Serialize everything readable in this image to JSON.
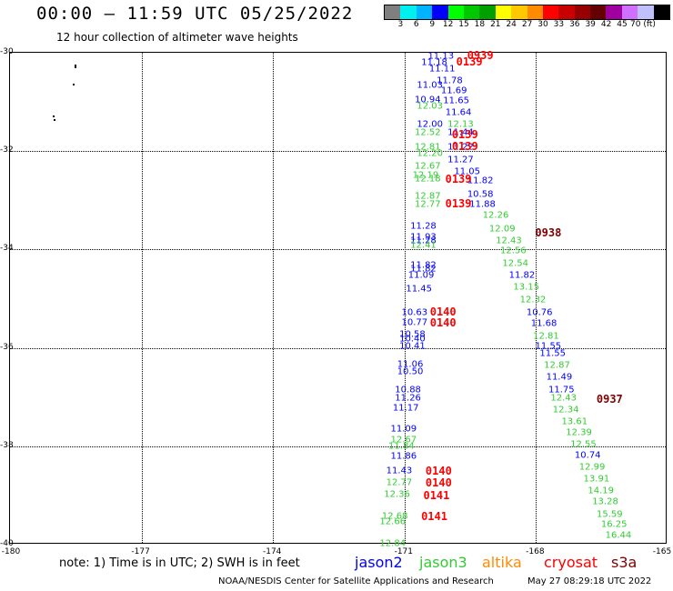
{
  "header": {
    "title": "00:00 — 11:59 UTC 05/25/2022",
    "subtitle": "12 hour collection of altimeter wave heights"
  },
  "colorbar": {
    "colors": [
      "#7f7f7f",
      "#00f0f0",
      "#00b4ff",
      "#0000ff",
      "#00ff00",
      "#00c800",
      "#00a000",
      "#ffff00",
      "#ffc800",
      "#ff8c00",
      "#ff0000",
      "#c80000",
      "#960000",
      "#640000",
      "#a000a0",
      "#d070ff",
      "#c0c0ff",
      "#000000"
    ],
    "labels": [
      "3",
      "6",
      "9",
      "12",
      "15",
      "18",
      "21",
      "24",
      "27",
      "30",
      "33",
      "36",
      "39",
      "42",
      "45",
      "70 (ft)"
    ]
  },
  "axes": {
    "lat_labels": [
      "-30",
      "-32",
      "-34",
      "-36",
      "-38",
      "-40"
    ],
    "lon_labels": [
      "-180",
      "-177",
      "-174",
      "-171",
      "-168",
      "-165"
    ]
  },
  "colors": {
    "jason2": "#0000ff",
    "jason3": "#33cc33",
    "altika": "#ff8c00",
    "cryosat": "#ff0000",
    "s3a": "#800000"
  },
  "observations": [
    {
      "v": "11.13",
      "lon": -170.15,
      "lat": -30.1,
      "s": "jason2"
    },
    {
      "v": "11.18",
      "lon": -170.3,
      "lat": -30.22,
      "s": "jason2"
    },
    {
      "v": "11.11",
      "lon": -170.12,
      "lat": -30.35,
      "s": "jason2"
    },
    {
      "v": "11.78",
      "lon": -169.95,
      "lat": -30.6,
      "s": "jason2"
    },
    {
      "v": "11.03",
      "lon": -170.4,
      "lat": -30.68,
      "s": "jason2"
    },
    {
      "v": "11.69",
      "lon": -169.85,
      "lat": -30.8,
      "s": "jason2"
    },
    {
      "v": "10.94",
      "lon": -170.45,
      "lat": -30.98,
      "s": "jason2"
    },
    {
      "v": "11.65",
      "lon": -169.8,
      "lat": -31.0,
      "s": "jason2"
    },
    {
      "v": "12.03",
      "lon": -170.4,
      "lat": -31.1,
      "s": "jason3"
    },
    {
      "v": "11.64",
      "lon": -169.75,
      "lat": -31.24,
      "s": "jason2"
    },
    {
      "v": "12.00",
      "lon": -170.4,
      "lat": -31.47,
      "s": "jason2"
    },
    {
      "v": "12.13",
      "lon": -169.7,
      "lat": -31.47,
      "s": "jason3"
    },
    {
      "v": "12.52",
      "lon": -170.45,
      "lat": -31.65,
      "s": "jason3"
    },
    {
      "v": "11.44",
      "lon": -169.7,
      "lat": -31.65,
      "s": "jason2"
    },
    {
      "v": "12.81",
      "lon": -170.45,
      "lat": -31.95,
      "s": "jason3"
    },
    {
      "v": "11.22",
      "lon": -169.7,
      "lat": -31.95,
      "s": "jason2"
    },
    {
      "v": "12.20",
      "lon": -170.4,
      "lat": -32.07,
      "s": "jason3"
    },
    {
      "v": "11.27",
      "lon": -169.7,
      "lat": -32.2,
      "s": "jason2"
    },
    {
      "v": "12.67",
      "lon": -170.45,
      "lat": -32.33,
      "s": "jason3"
    },
    {
      "v": "11.05",
      "lon": -169.55,
      "lat": -32.44,
      "s": "jason2"
    },
    {
      "v": "12.19",
      "lon": -170.5,
      "lat": -32.52,
      "s": "jason3"
    },
    {
      "v": "12.18",
      "lon": -170.45,
      "lat": -32.58,
      "s": "jason3"
    },
    {
      "v": "11.82",
      "lon": -169.25,
      "lat": -32.62,
      "s": "jason2"
    },
    {
      "v": "12.87",
      "lon": -170.45,
      "lat": -32.93,
      "s": "jason3"
    },
    {
      "v": "10.58",
      "lon": -169.25,
      "lat": -32.9,
      "s": "jason2"
    },
    {
      "v": "12.77",
      "lon": -170.45,
      "lat": -33.1,
      "s": "jason3"
    },
    {
      "v": "11.88",
      "lon": -169.2,
      "lat": -33.1,
      "s": "jason2"
    },
    {
      "v": "12.26",
      "lon": -168.9,
      "lat": -33.33,
      "s": "jason3"
    },
    {
      "v": "11.28",
      "lon": -170.55,
      "lat": -33.55,
      "s": "jason2"
    },
    {
      "v": "12.09",
      "lon": -168.75,
      "lat": -33.6,
      "s": "jason3"
    },
    {
      "v": "11.93",
      "lon": -170.55,
      "lat": -33.78,
      "s": "jason2"
    },
    {
      "v": "11.28",
      "lon": -170.55,
      "lat": -33.85,
      "s": "jason2"
    },
    {
      "v": "12.43",
      "lon": -168.6,
      "lat": -33.85,
      "s": "jason3"
    },
    {
      "v": "12.41",
      "lon": -170.55,
      "lat": -33.93,
      "s": "jason3"
    },
    {
      "v": "12.56",
      "lon": -168.5,
      "lat": -34.05,
      "s": "jason3"
    },
    {
      "v": "12.54",
      "lon": -168.45,
      "lat": -34.3,
      "s": "jason3"
    },
    {
      "v": "11.82",
      "lon": -170.55,
      "lat": -34.35,
      "s": "jason2"
    },
    {
      "v": "11.82",
      "lon": -170.55,
      "lat": -34.42,
      "s": "jason2"
    },
    {
      "v": "11.09",
      "lon": -170.6,
      "lat": -34.55,
      "s": "jason2"
    },
    {
      "v": "11.82",
      "lon": -168.3,
      "lat": -34.55,
      "s": "jason2"
    },
    {
      "v": "11.45",
      "lon": -170.65,
      "lat": -34.82,
      "s": "jason2"
    },
    {
      "v": "13.15",
      "lon": -168.2,
      "lat": -34.78,
      "s": "jason3"
    },
    {
      "v": "12.32",
      "lon": -168.05,
      "lat": -35.05,
      "s": "jason3"
    },
    {
      "v": "10.63",
      "lon": -170.75,
      "lat": -35.3,
      "s": "jason2"
    },
    {
      "v": "10.76",
      "lon": -167.9,
      "lat": -35.3,
      "s": "jason2"
    },
    {
      "v": "10.77",
      "lon": -170.75,
      "lat": -35.5,
      "s": "jason2"
    },
    {
      "v": "11.68",
      "lon": -167.8,
      "lat": -35.52,
      "s": "jason2"
    },
    {
      "v": "10.58",
      "lon": -170.8,
      "lat": -35.75,
      "s": "jason2"
    },
    {
      "v": "12.81",
      "lon": -167.75,
      "lat": -35.78,
      "s": "jason3"
    },
    {
      "v": "10.40",
      "lon": -170.8,
      "lat": -35.85,
      "s": "jason2"
    },
    {
      "v": "10.41",
      "lon": -170.8,
      "lat": -35.98,
      "s": "jason2"
    },
    {
      "v": "11.55",
      "lon": -167.7,
      "lat": -35.98,
      "s": "jason2"
    },
    {
      "v": "11.55",
      "lon": -167.6,
      "lat": -36.13,
      "s": "jason2"
    },
    {
      "v": "11.06",
      "lon": -170.85,
      "lat": -36.35,
      "s": "jason2"
    },
    {
      "v": "12.87",
      "lon": -167.5,
      "lat": -36.38,
      "s": "jason3"
    },
    {
      "v": "10.50",
      "lon": -170.85,
      "lat": -36.5,
      "s": "jason2"
    },
    {
      "v": "11.49",
      "lon": -167.45,
      "lat": -36.62,
      "s": "jason2"
    },
    {
      "v": "10.88",
      "lon": -170.9,
      "lat": -36.88,
      "s": "jason2"
    },
    {
      "v": "11.75",
      "lon": -167.4,
      "lat": -36.88,
      "s": "jason2"
    },
    {
      "v": "11.26",
      "lon": -170.9,
      "lat": -37.05,
      "s": "jason2"
    },
    {
      "v": "12.43",
      "lon": -167.35,
      "lat": -37.05,
      "s": "jason3"
    },
    {
      "v": "11.17",
      "lon": -170.95,
      "lat": -37.25,
      "s": "jason2"
    },
    {
      "v": "12.34",
      "lon": -167.3,
      "lat": -37.28,
      "s": "jason3"
    },
    {
      "v": "13.61",
      "lon": -167.1,
      "lat": -37.52,
      "s": "jason3"
    },
    {
      "v": "11.09",
      "lon": -171.0,
      "lat": -37.67,
      "s": "jason2"
    },
    {
      "v": "12.39",
      "lon": -167.0,
      "lat": -37.75,
      "s": "jason3"
    },
    {
      "v": "12.67",
      "lon": -171.0,
      "lat": -37.9,
      "s": "jason3"
    },
    {
      "v": "12.55",
      "lon": -166.9,
      "lat": -37.98,
      "s": "jason3"
    },
    {
      "v": "11.84",
      "lon": -171.05,
      "lat": -38.02,
      "s": "jason3"
    },
    {
      "v": "11.86",
      "lon": -171.0,
      "lat": -38.22,
      "s": "jason2"
    },
    {
      "v": "10.74",
      "lon": -166.8,
      "lat": -38.2,
      "s": "jason2"
    },
    {
      "v": "12.99",
      "lon": -166.7,
      "lat": -38.45,
      "s": "jason3"
    },
    {
      "v": "11.43",
      "lon": -171.1,
      "lat": -38.52,
      "s": "jason2"
    },
    {
      "v": "13.91",
      "lon": -166.6,
      "lat": -38.68,
      "s": "jason3"
    },
    {
      "v": "12.77",
      "lon": -171.1,
      "lat": -38.76,
      "s": "jason3"
    },
    {
      "v": "14.19",
      "lon": -166.5,
      "lat": -38.93,
      "s": "jason3"
    },
    {
      "v": "12.36",
      "lon": -171.15,
      "lat": -39.01,
      "s": "jason3"
    },
    {
      "v": "13.28",
      "lon": -166.4,
      "lat": -39.15,
      "s": "jason3"
    },
    {
      "v": "15.59",
      "lon": -166.3,
      "lat": -39.4,
      "s": "jason3"
    },
    {
      "v": "12.68",
      "lon": -171.2,
      "lat": -39.45,
      "s": "jason3"
    },
    {
      "v": "12.66",
      "lon": -171.25,
      "lat": -39.55,
      "s": "jason3"
    },
    {
      "v": "16.25",
      "lon": -166.2,
      "lat": -39.62,
      "s": "jason3"
    },
    {
      "v": "16.44",
      "lon": -166.1,
      "lat": -39.83,
      "s": "jason3"
    },
    {
      "v": "12.84",
      "lon": -171.25,
      "lat": -40.0,
      "s": "jason3"
    }
  ],
  "time_labels": [
    {
      "t": "0939",
      "lon": -169.25,
      "lat": -30.08,
      "s": "cryosat"
    },
    {
      "t": "0139",
      "lon": -169.5,
      "lat": -30.2,
      "s": "cryosat"
    },
    {
      "t": "0139",
      "lon": -169.6,
      "lat": -31.68,
      "s": "cryosat"
    },
    {
      "t": "0139",
      "lon": -169.6,
      "lat": -31.92,
      "s": "cryosat"
    },
    {
      "t": "0139",
      "lon": -169.75,
      "lat": -32.58,
      "s": "cryosat"
    },
    {
      "t": "0139",
      "lon": -169.75,
      "lat": -33.08,
      "s": "cryosat"
    },
    {
      "t": "0938",
      "lon": -167.7,
      "lat": -33.68,
      "s": "s3a"
    },
    {
      "t": "0140",
      "lon": -170.1,
      "lat": -35.28,
      "s": "cryosat"
    },
    {
      "t": "0140",
      "lon": -170.1,
      "lat": -35.5,
      "s": "cryosat"
    },
    {
      "t": "0937",
      "lon": -166.3,
      "lat": -37.06,
      "s": "s3a"
    },
    {
      "t": "0140",
      "lon": -170.2,
      "lat": -38.53,
      "s": "cryosat"
    },
    {
      "t": "0140",
      "lon": -170.2,
      "lat": -38.77,
      "s": "cryosat"
    },
    {
      "t": "0141",
      "lon": -170.25,
      "lat": -39.02,
      "s": "cryosat"
    },
    {
      "t": "0141",
      "lon": -170.3,
      "lat": -39.45,
      "s": "cryosat"
    }
  ],
  "dots": [
    {
      "lon": -178.5,
      "lat": -30.25
    },
    {
      "lon": -178.5,
      "lat": -30.3
    },
    {
      "lon": -178.55,
      "lat": -30.65
    },
    {
      "lon": -179.0,
      "lat": -31.3
    },
    {
      "lon": -178.98,
      "lat": -31.36
    }
  ],
  "footer": {
    "note": "note:  1) Time is in UTC; 2) SWH is in feet",
    "legend": [
      {
        "label": "jason2",
        "s": "jason2"
      },
      {
        "label": "jason3",
        "s": "jason3"
      },
      {
        "label": "altika",
        "s": "altika"
      },
      {
        "label": "cryosat",
        "s": "cryosat"
      },
      {
        "label": "s3a",
        "s": "s3a"
      }
    ],
    "credit": "NOAA/NESDIS Center for Satellite Applications and Research",
    "timestamp": "May 27 08:29:18 UTC 2022"
  }
}
